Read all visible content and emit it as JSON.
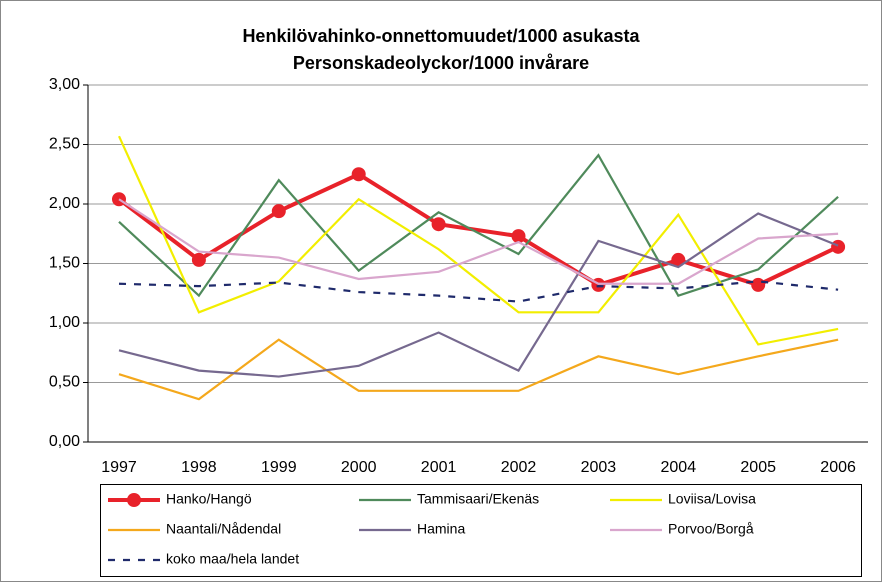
{
  "chart_data": {
    "type": "line",
    "title": "Henkilövahinko-onnettomuudet/1000 asukasta",
    "subtitle": "Personskadeolyckor/1000 invårare",
    "categories": [
      "1997",
      "1998",
      "1999",
      "2000",
      "2001",
      "2002",
      "2003",
      "2004",
      "2005",
      "2006"
    ],
    "series": [
      {
        "name": "Hanko/Hangö",
        "color": "#e8222a",
        "marker": "circle",
        "values": [
          2.04,
          1.53,
          1.94,
          2.25,
          1.83,
          1.73,
          1.32,
          1.53,
          1.32,
          1.64
        ]
      },
      {
        "name": "Tammisaari/Ekenäs",
        "color": "#4f8a5b",
        "values": [
          1.85,
          1.23,
          2.2,
          1.44,
          1.93,
          1.58,
          2.41,
          1.23,
          1.45,
          2.06
        ]
      },
      {
        "name": "Loviisa/Lovisa",
        "color": "#f2ee00",
        "values": [
          2.57,
          1.09,
          1.35,
          2.04,
          1.62,
          1.09,
          1.09,
          1.91,
          0.82,
          0.95
        ]
      },
      {
        "name": "Naantali/Nådendal",
        "color": "#f4a81c",
        "values": [
          0.57,
          0.36,
          0.86,
          0.43,
          0.43,
          0.43,
          0.72,
          0.57,
          0.72,
          0.86
        ]
      },
      {
        "name": "Hamina",
        "color": "#76698f",
        "values": [
          0.77,
          0.6,
          0.55,
          0.64,
          0.92,
          0.6,
          1.69,
          1.47,
          1.92,
          1.65
        ]
      },
      {
        "name": "Porvoo/Borgå",
        "color": "#d9a6cd",
        "values": [
          2.04,
          1.6,
          1.55,
          1.37,
          1.43,
          1.68,
          1.33,
          1.33,
          1.71,
          1.75
        ]
      },
      {
        "name": "koko maa/hela landet",
        "color": "#1f2a6b",
        "dash": true,
        "values": [
          1.33,
          1.31,
          1.34,
          1.26,
          1.23,
          1.18,
          1.31,
          1.29,
          1.35,
          1.28
        ]
      }
    ],
    "ylim": [
      0,
      3
    ],
    "yticks": [
      {
        "value": 0,
        "label": "0,00"
      },
      {
        "value": 0.5,
        "label": "0,50"
      },
      {
        "value": 1,
        "label": "1,00"
      },
      {
        "value": 1.5,
        "label": "1,50"
      },
      {
        "value": 2,
        "label": "2,00"
      },
      {
        "value": 2.5,
        "label": "2,50"
      },
      {
        "value": 3,
        "label": "3,00"
      }
    ],
    "grid": true,
    "legend": "bottom"
  }
}
